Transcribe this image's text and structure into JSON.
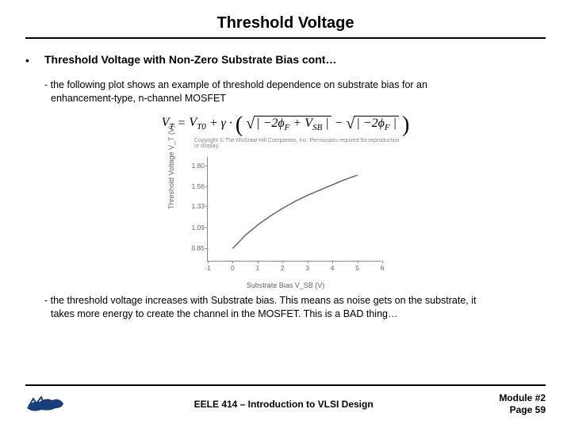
{
  "title": "Threshold Voltage",
  "heading": "Threshold Voltage with Non-Zero Substrate Bias cont…",
  "para1_lead": "- the following plot shows an example of threshold dependence on substrate bias for an",
  "para1_rest": "enhancement-type, n-channel MOSFET",
  "equation": {
    "lhs": "V",
    "lhs_sub": "T",
    "eq": " = ",
    "t0": "V",
    "t0_sub": "T0",
    "plus": " + ",
    "gamma": "γ",
    "dot": " · ",
    "abs1a": "| −2",
    "phi1": "ϕ",
    "phi1_sub": "F",
    "abs1b": " + V",
    "vsb_sub": "SB",
    "abs1c": " |",
    "minus": " − ",
    "abs2a": "| −2",
    "phi2": "ϕ",
    "phi2_sub": "F",
    "abs2b": " |"
  },
  "chart": {
    "copyright": "Copyright © The McGraw-Hill Companies, Inc. Permission required for reproduction or display.",
    "ylabel": "Threshold Voltage  V_T  (V)",
    "xlabel": "Substrate Bias   V_SB   (V)",
    "xlim": [
      -1,
      6
    ],
    "ylim": [
      0.7,
      1.9
    ],
    "xticks": [
      -1,
      0,
      1,
      2,
      3,
      4,
      5,
      6
    ],
    "yticks": [
      {
        "v": 0.85,
        "label": "0.85"
      },
      {
        "v": 1.09,
        "label": "1.09"
      },
      {
        "v": 1.33,
        "label": "1.33"
      },
      {
        "v": 1.56,
        "label": "1.56"
      },
      {
        "v": 1.8,
        "label": "1.80"
      }
    ],
    "curve": [
      {
        "x": 0.0,
        "y": 0.85
      },
      {
        "x": 0.5,
        "y": 1.0
      },
      {
        "x": 1.0,
        "y": 1.12
      },
      {
        "x": 1.5,
        "y": 1.22
      },
      {
        "x": 2.0,
        "y": 1.31
      },
      {
        "x": 2.5,
        "y": 1.39
      },
      {
        "x": 3.0,
        "y": 1.46
      },
      {
        "x": 3.5,
        "y": 1.52
      },
      {
        "x": 4.0,
        "y": 1.58
      },
      {
        "x": 4.5,
        "y": 1.64
      },
      {
        "x": 5.0,
        "y": 1.69
      }
    ],
    "curve_color": "#666666",
    "axis_color": "#888888",
    "tick_fontsize": 8.5,
    "label_fontsize": 9
  },
  "para2_lead": "- the threshold voltage increases with Substrate bias.  This means as noise gets on the substrate, it",
  "para2_rest": "takes more energy to create the channel in the MOSFET.  This is a BAD thing…",
  "footer": {
    "center": "EELE 414 – Introduction to VLSI Design",
    "module": "Module #2",
    "page": "Page 59",
    "logo_color": "#1a3e7a"
  }
}
